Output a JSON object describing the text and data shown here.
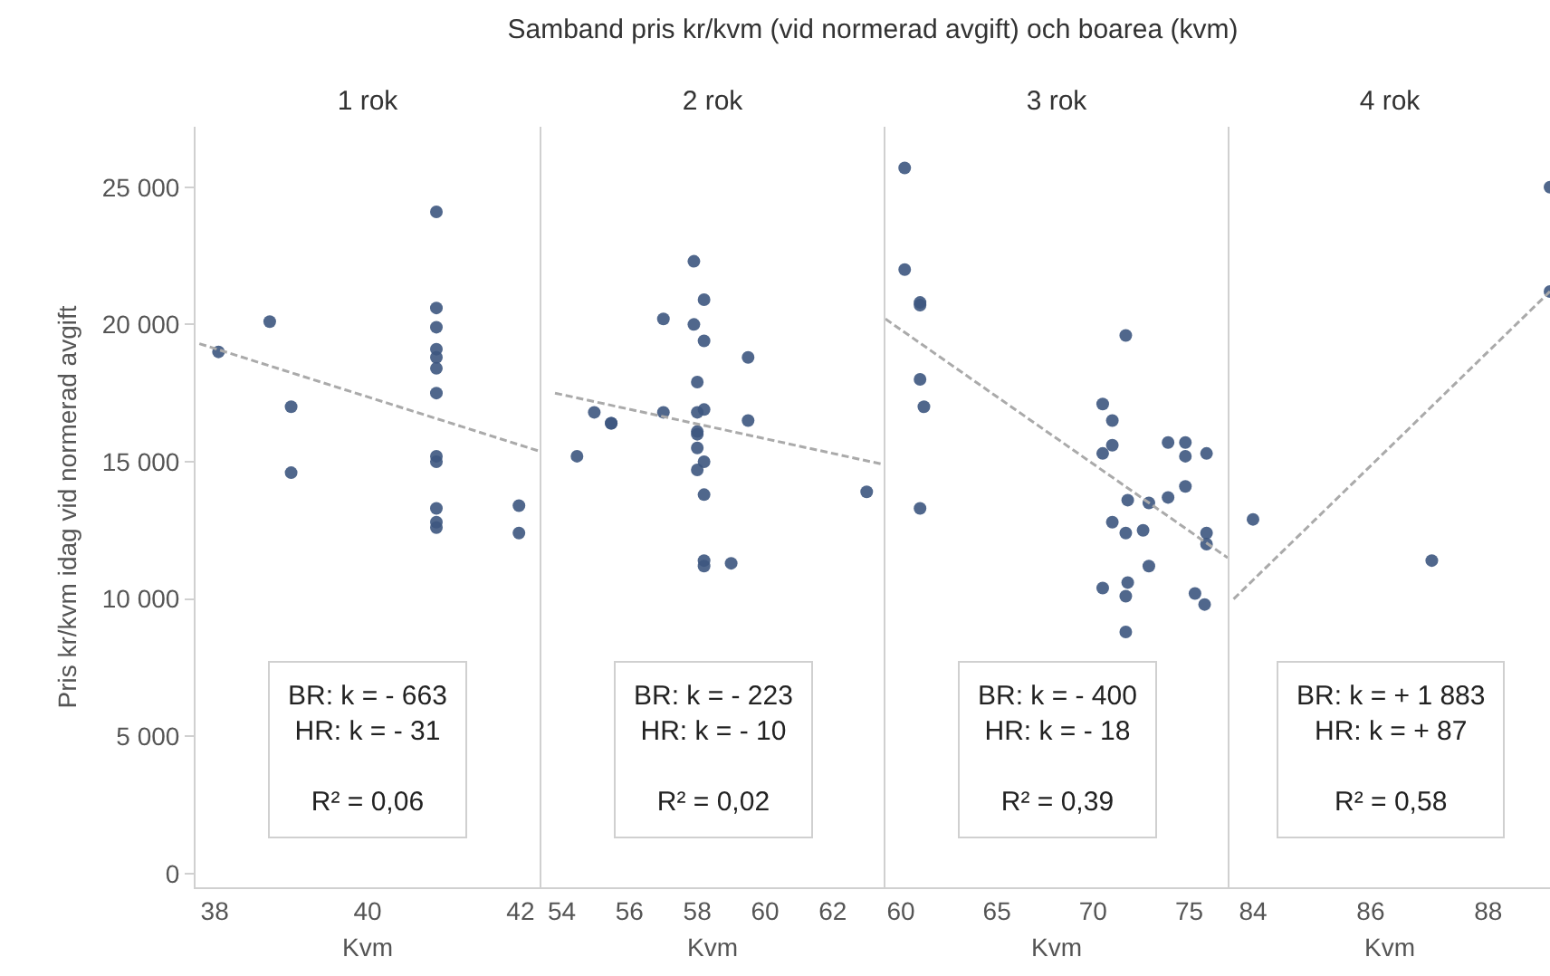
{
  "chart_data": [
    {
      "type": "scatter",
      "title": "1 rok",
      "xlabel": "Kvm",
      "ylabel": "Pris kr/kvm idag vid normerad avgift",
      "annotations": [
        "Samband pris kr/kvm (vid normerad avgift) och boarea (kvm)",
        "BR: k = - 663\nHR: k = - 31\n\nR² = 0,06"
      ],
      "xlim": [
        37.75,
        42.25
      ],
      "xticks": [
        38,
        40,
        42
      ],
      "ylim": [
        -500,
        27200
      ],
      "yticks": [
        0,
        {
          "value": 5000,
          "label": "5 000"
        },
        {
          "value": 10000,
          "label": "10 000"
        },
        {
          "value": 15000,
          "label": "15 000"
        },
        {
          "value": 20000,
          "label": "20 000"
        },
        {
          "value": 25000,
          "label": "25 000"
        }
      ],
      "series": [
        {
          "marker": "circle",
          "color": "#3d5680",
          "x": [
            38.05,
            38.72,
            39.0,
            39.0,
            40.9,
            40.9,
            40.9,
            40.9,
            40.9,
            40.9,
            40.9,
            40.9,
            40.9,
            40.9,
            40.9,
            40.9,
            41.98,
            41.98
          ],
          "values": [
            19000,
            20100,
            17000,
            14600,
            24100,
            20600,
            19900,
            19100,
            18800,
            18400,
            17500,
            15200,
            15000,
            13300,
            12800,
            12600,
            13400,
            12400
          ]
        },
        {
          "type": "line",
          "color": "#aaaaaa",
          "line_style": "dashed",
          "x": [
            37.8,
            42.23
          ],
          "values": [
            19300,
            15400
          ]
        }
      ]
    },
    {
      "type": "scatter",
      "title": "2 rok",
      "xlabel": "Kvm",
      "tick_labels": "x",
      "annotations": [
        "BR: k = - 223\nHR: k = - 10\n\nR² = 0,02"
      ],
      "xlim": [
        53.4,
        63.5
      ],
      "xticks": [
        54,
        56,
        58,
        60,
        62
      ],
      "ylim": [
        -500,
        27200
      ],
      "yticks": [
        {
          "value": 0,
          "label": null
        },
        {
          "value": 5000,
          "label": null
        },
        {
          "value": 10000,
          "label": null
        },
        {
          "value": 15000,
          "label": null
        },
        {
          "value": 20000,
          "label": null
        },
        {
          "value": 25000,
          "label": null
        }
      ],
      "series": [
        {
          "marker": "circle",
          "color": "#3d5680",
          "x": [
            54.96,
            55.46,
            55.46,
            54.45,
            57.0,
            57.0,
            57.9,
            57.9,
            58.2,
            58.2,
            58.0,
            58.0,
            58.2,
            58.0,
            58.0,
            58.0,
            58.2,
            58.0,
            58.2,
            58.2,
            58.2,
            59.0,
            59.5,
            59.5,
            63.0
          ],
          "values": [
            16800,
            16400,
            16400,
            15200,
            20200,
            16800,
            22300,
            20000,
            20900,
            19400,
            17900,
            16800,
            16900,
            16100,
            16000,
            15500,
            15000,
            14700,
            13800,
            11400,
            11200,
            11300,
            18800,
            16500,
            13900
          ]
        },
        {
          "type": "line",
          "color": "#aaaaaa",
          "line_style": "dashed",
          "x": [
            53.8,
            63.5
          ],
          "values": [
            17500,
            14900
          ]
        }
      ]
    },
    {
      "type": "scatter",
      "title": "3 rok",
      "xlabel": "Kvm",
      "tick_labels": "x",
      "annotations": [
        "BR: k = - 400\nHR: k = - 18\n\nR² = 0,39"
      ],
      "xlim": [
        59.2,
        77
      ],
      "xticks": [
        60,
        65,
        70,
        75
      ],
      "ylim": [
        -500,
        27200
      ],
      "yticks": [
        {
          "value": 0,
          "label": null
        },
        {
          "value": 5000,
          "label": null
        },
        {
          "value": 10000,
          "label": null
        },
        {
          "value": 15000,
          "label": null
        },
        {
          "value": 20000,
          "label": null
        },
        {
          "value": 25000,
          "label": null
        }
      ],
      "series": [
        {
          "marker": "circle",
          "color": "#3d5680",
          "x": [
            60.2,
            60.2,
            61.0,
            61.0,
            61.0,
            61.2,
            61.0,
            71.7,
            70.5,
            71.0,
            71.0,
            70.5,
            73.9,
            74.8,
            74.8,
            75.9,
            74.8,
            73.9,
            71.8,
            72.9,
            71.0,
            72.6,
            71.7,
            75.9,
            75.9,
            72.9,
            71.8,
            70.5,
            71.7,
            75.3,
            75.8,
            71.7
          ],
          "values": [
            25700,
            22000,
            20800,
            20700,
            18000,
            17000,
            13300,
            19600,
            17100,
            16500,
            15600,
            15300,
            15700,
            15700,
            15200,
            15300,
            14100,
            13700,
            13600,
            13500,
            12800,
            12500,
            12400,
            12400,
            12000,
            11200,
            10600,
            10400,
            10100,
            10200,
            9800,
            8800
          ]
        },
        {
          "type": "line",
          "color": "#aaaaaa",
          "line_style": "dashed",
          "x": [
            59.2,
            77.0
          ],
          "values": [
            20200,
            11500
          ]
        }
      ]
    },
    {
      "type": "scatter",
      "title": "4 rok",
      "xlabel": "Kvm",
      "tick_labels": "x",
      "annotations": [
        "BR: k = + 1 883\nHR: k = + 87\n\nR² = 0,58"
      ],
      "xlim": [
        83.6,
        89.05
      ],
      "xticks": [
        84,
        86,
        88
      ],
      "ylim": [
        -500,
        27200
      ],
      "yticks": [
        {
          "value": 0,
          "label": null
        },
        {
          "value": 5000,
          "label": null
        },
        {
          "value": 10000,
          "label": null
        },
        {
          "value": 15000,
          "label": null
        },
        {
          "value": 20000,
          "label": null
        },
        {
          "value": 25000,
          "label": null
        }
      ],
      "series": [
        {
          "marker": "circle",
          "color": "#3d5680",
          "x": [
            84.0,
            87.04,
            89.05,
            89.05
          ],
          "values": [
            12900,
            11400,
            25000,
            21200
          ]
        },
        {
          "type": "line",
          "color": "#aaaaaa",
          "line_style": "dashed",
          "x": [
            83.67,
            89.05
          ],
          "values": [
            10000,
            21200
          ]
        }
      ]
    }
  ]
}
